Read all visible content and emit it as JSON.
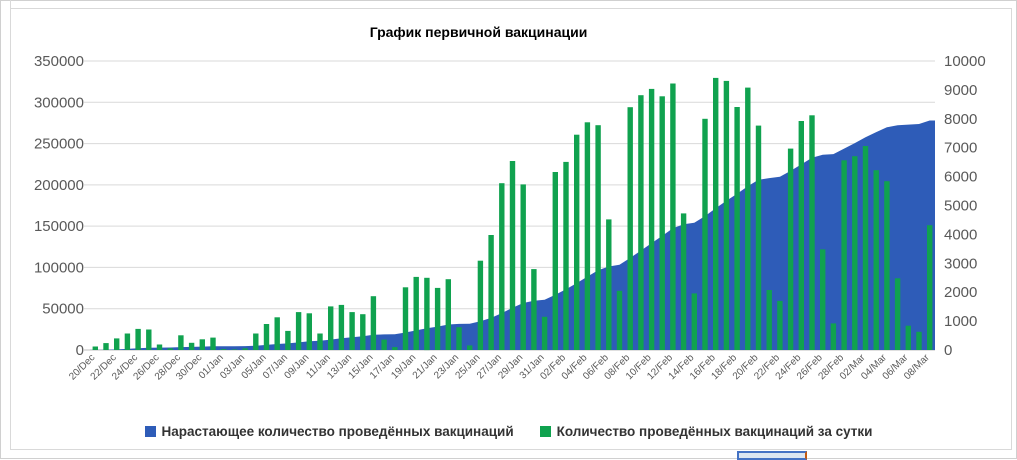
{
  "chart_data": {
    "type": "combo",
    "title": "График первичной вакцинации",
    "grid": true,
    "legend_position": "bottom",
    "left_axis": {
      "min": 0,
      "max": 350000,
      "step": 50000,
      "ticks": [
        "0",
        "50000",
        "100000",
        "150000",
        "200000",
        "250000",
        "300000",
        "350000"
      ]
    },
    "right_axis": {
      "min": 0,
      "max": 10000,
      "step": 1000,
      "ticks": [
        "0",
        "1000",
        "2000",
        "3000",
        "4000",
        "5000",
        "6000",
        "7000",
        "8000",
        "9000",
        "10000"
      ]
    },
    "x_tick_labels": [
      "20/Dec",
      "22/Dec",
      "24/Dec",
      "26/Dec",
      "28/Dec",
      "30/Dec",
      "01/Jan",
      "03/Jan",
      "05/Jan",
      "07/Jan",
      "09/Jan",
      "11/Jan",
      "13/Jan",
      "15/Jan",
      "17/Jan",
      "19/Jan",
      "21/Jan",
      "23/Jan",
      "25/Jan",
      "27/Jan",
      "29/Jan",
      "31/Jan",
      "02/Feb",
      "04/Feb",
      "06/Feb",
      "08/Feb",
      "10/Feb",
      "12/Feb",
      "14/Feb",
      "16/Feb",
      "18/Feb",
      "20/Feb",
      "22/Feb",
      "24/Feb",
      "26/Feb",
      "28/Feb",
      "02/Mar",
      "04/Mar",
      "06/Mar",
      "08/Mar"
    ],
    "dates": [
      "20/Dec",
      "21/Dec",
      "22/Dec",
      "23/Dec",
      "24/Dec",
      "25/Dec",
      "26/Dec",
      "27/Dec",
      "28/Dec",
      "29/Dec",
      "30/Dec",
      "31/Dec",
      "01/Jan",
      "02/Jan",
      "03/Jan",
      "04/Jan",
      "05/Jan",
      "06/Jan",
      "07/Jan",
      "08/Jan",
      "09/Jan",
      "10/Jan",
      "11/Jan",
      "12/Jan",
      "13/Jan",
      "14/Jan",
      "15/Jan",
      "16/Jan",
      "17/Jan",
      "18/Jan",
      "19/Jan",
      "20/Jan",
      "21/Jan",
      "22/Jan",
      "23/Jan",
      "24/Jan",
      "25/Jan",
      "26/Jan",
      "27/Jan",
      "28/Jan",
      "29/Jan",
      "30/Jan",
      "31/Jan",
      "01/Feb",
      "02/Feb",
      "03/Feb",
      "04/Feb",
      "05/Feb",
      "06/Feb",
      "07/Feb",
      "08/Feb",
      "09/Feb",
      "10/Feb",
      "11/Feb",
      "12/Feb",
      "13/Feb",
      "14/Feb",
      "15/Feb",
      "16/Feb",
      "17/Feb",
      "18/Feb",
      "19/Feb",
      "20/Feb",
      "21/Feb",
      "22/Feb",
      "23/Feb",
      "24/Feb",
      "25/Feb",
      "26/Feb",
      "27/Feb",
      "28/Feb",
      "01/Mar",
      "02/Mar",
      "03/Mar",
      "04/Mar",
      "05/Mar",
      "06/Mar",
      "07/Mar",
      "08/Mar"
    ],
    "series": [
      {
        "name": "Нарастающее количество проведённых вакцинаций",
        "type": "area",
        "axis": "left",
        "color": "#2e5cb8",
        "values": [
          120,
          360,
          760,
          1330,
          2060,
          2770,
          2960,
          3020,
          3530,
          3780,
          4150,
          4580,
          4610,
          4630,
          4690,
          5260,
          6160,
          7290,
          7950,
          9260,
          10530,
          11100,
          12610,
          14170,
          15480,
          16720,
          18580,
          18940,
          19040,
          21210,
          23740,
          26240,
          28390,
          30840,
          31630,
          31790,
          34880,
          38860,
          44630,
          51170,
          56900,
          59700,
          60850,
          67010,
          73520,
          80970,
          88850,
          96630,
          101150,
          103200,
          111600,
          120415,
          129450,
          138230,
          147450,
          152175,
          154135,
          162135,
          171550,
          180860,
          189270,
          198350,
          206115,
          208190,
          209890,
          216860,
          224785,
          232905,
          236385,
          237305,
          243870,
          250575,
          257635,
          263855,
          269695,
          272175,
          273015,
          273645,
          277965
        ]
      },
      {
        "name": "Количество проведённых вакцинаций за сутки",
        "type": "bar",
        "axis": "right",
        "color": "#10a24f",
        "values": [
          120,
          240,
          400,
          570,
          730,
          710,
          190,
          60,
          510,
          250,
          370,
          430,
          30,
          20,
          60,
          570,
          900,
          1130,
          660,
          1310,
          1270,
          570,
          1510,
          1560,
          1310,
          1240,
          1860,
          360,
          100,
          2170,
          2530,
          2500,
          2150,
          2450,
          790,
          160,
          3090,
          3980,
          5770,
          6540,
          5730,
          2800,
          1150,
          6160,
          6510,
          7450,
          7880,
          7780,
          4520,
          2050,
          8400,
          8815,
          9035,
          8780,
          9220,
          4725,
          1960,
          8000,
          9415,
          9310,
          8410,
          9080,
          7765,
          2075,
          1700,
          6970,
          7925,
          8120,
          3480,
          920,
          6565,
          6705,
          7060,
          6220,
          5840,
          2480,
          840,
          630,
          4320
        ]
      }
    ]
  },
  "legend": {
    "items": [
      {
        "label": "Нарастающее количество проведённых вакцинаций",
        "color": "#2e5cb8"
      },
      {
        "label": "Количество проведённых вакцинаций за сутки",
        "color": "#10a24f"
      }
    ]
  },
  "colors": {
    "gridline": "#d9d9d9",
    "axis_line": "#bfbfbf",
    "tick_label": "#595959",
    "area_fill": "#2e5cb8",
    "bar_fill": "#10a24f",
    "selected_cell_fill": "#dce6f1",
    "selected_cell_border": "#4472c4"
  }
}
